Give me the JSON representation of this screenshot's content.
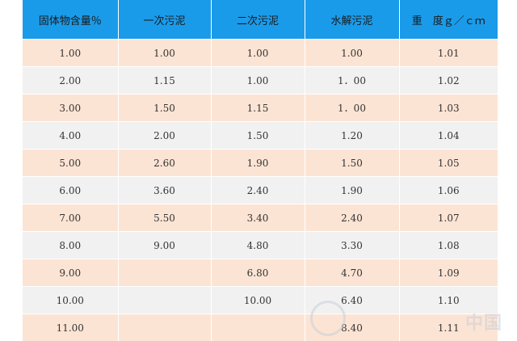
{
  "table": {
    "headers": [
      "固体物含量％",
      "一次污泥",
      "二次污泥",
      "水解污泥",
      "重　度ｇ／ｃｍ"
    ],
    "rows": [
      [
        "1.00",
        "1.00",
        "1.00",
        "1.00",
        "1.01"
      ],
      [
        "2.00",
        "1.15",
        "1.00",
        "1．00",
        "1.02"
      ],
      [
        "3.00",
        "1.50",
        "1.15",
        "1．00",
        "1.03"
      ],
      [
        "4.00",
        "2.00",
        "1.50",
        "1.20",
        "1.04"
      ],
      [
        "5.00",
        "2.60",
        "1.90",
        "1.50",
        "1.05"
      ],
      [
        "6.00",
        "3.60",
        "2.40",
        "1.90",
        "1.06"
      ],
      [
        "7.00",
        "5.50",
        "3.40",
        "2.40",
        "1.07"
      ],
      [
        "8.00",
        "9.00",
        "4.80",
        "3.30",
        "1.08"
      ],
      [
        "9.00",
        "",
        "6.80",
        "4.70",
        "1.09"
      ],
      [
        "10.00",
        "",
        "10.00",
        "6.40",
        "1.10"
      ],
      [
        "11.00",
        "",
        "",
        "8.40",
        "1.11"
      ]
    ]
  },
  "colors": {
    "header_bg": "#1a9bea",
    "row_odd_bg": "#fce4d4",
    "row_even_bg": "#f1f1f1"
  },
  "watermark": {
    "text": "中国"
  }
}
